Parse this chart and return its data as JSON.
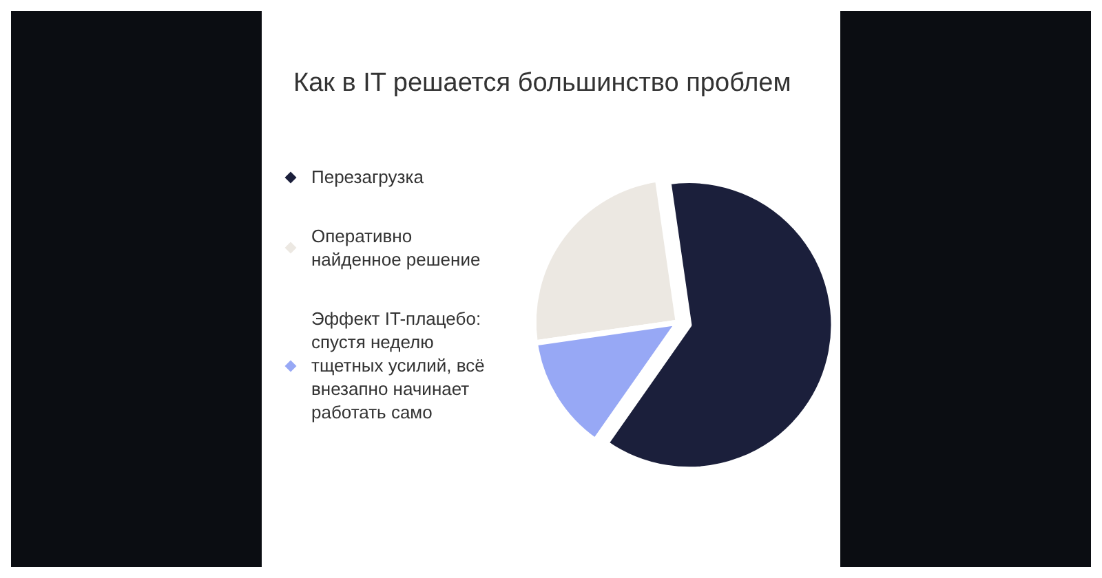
{
  "chart_data": {
    "type": "pie",
    "title": "Как в IT решается большинство проблем",
    "categories": [
      "Перезагрузка",
      "Оперативно найденное решение",
      "Эффект IT-плацебо: спустя неделю тщетных усилий, всё внезапно начинает работать само"
    ],
    "values": [
      62,
      25,
      13
    ],
    "colors": [
      "#1b1f3b",
      "#ece8e2",
      "#97a8f5"
    ],
    "legend": "left"
  }
}
